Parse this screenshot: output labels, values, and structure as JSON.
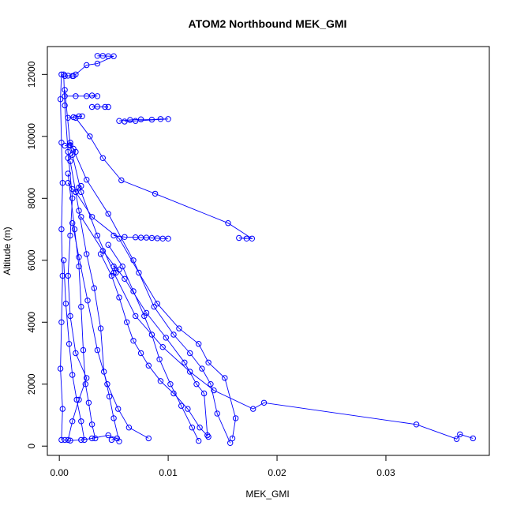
{
  "chart_data": {
    "type": "scatter",
    "title": "ATOM2 Northbound MEK_GMI",
    "xlabel": "MEK_GMI",
    "ylabel": "Altitude (m)",
    "xlim": [
      -0.0011,
      0.0395
    ],
    "ylim": [
      -300,
      12900
    ],
    "x_ticks": [
      "0.00",
      "0.01",
      "0.02",
      "0.03"
    ],
    "x_tick_values": [
      0,
      0.01,
      0.02,
      0.03
    ],
    "y_ticks": [
      "0",
      "2000",
      "4000",
      "6000",
      "8000",
      "10000",
      "12000"
    ],
    "y_tick_values": [
      0,
      2000,
      4000,
      6000,
      8000,
      10000,
      12000
    ],
    "grid": false,
    "series": [
      {
        "color": "#0000ff",
        "marker": "open-circle",
        "line": true,
        "profiles": [
          [
            [
              0.0002,
              200
            ],
            [
              0.0003,
              1200
            ],
            [
              0.0001,
              2500
            ],
            [
              0.0002,
              4000
            ],
            [
              0.0003,
              5500
            ],
            [
              0.0002,
              7000
            ],
            [
              0.0003,
              8500
            ],
            [
              0.0002,
              9800
            ],
            [
              0.0001,
              11200
            ],
            [
              0.0002,
              12000
            ]
          ],
          [
            [
              0.0008,
              200
            ],
            [
              0.0012,
              800
            ],
            [
              0.0018,
              1500
            ],
            [
              0.0025,
              2200
            ],
            [
              0.0015,
              3000
            ],
            [
              0.001,
              4200
            ],
            [
              0.0008,
              5500
            ],
            [
              0.001,
              6800
            ],
            [
              0.0012,
              8000
            ],
            [
              0.0008,
              9500
            ],
            [
              0.0005,
              11000
            ],
            [
              0.0004,
              12000
            ]
          ],
          [
            [
              0.038,
              250
            ],
            [
              0.0368,
              380
            ],
            [
              0.0365,
              230
            ],
            [
              0.0328,
              700
            ],
            [
              0.0188,
              1400
            ],
            [
              0.0178,
              1200
            ],
            [
              0.0142,
              1800
            ],
            [
              0.012,
              2400
            ],
            [
              0.0095,
              3200
            ],
            [
              0.007,
              4200
            ],
            [
              0.005,
              5600
            ],
            [
              0.0035,
              6800
            ],
            [
              0.002,
              8200
            ],
            [
              0.001,
              9700
            ],
            [
              0.0005,
              11500
            ]
          ],
          [
            [
              0.0172,
              6700
            ],
            [
              0.0165,
              6720
            ],
            [
              0.0177,
              6700
            ],
            [
              0.0155,
              7200
            ],
            [
              0.0088,
              8150
            ],
            [
              0.0057,
              8580
            ],
            [
              0.004,
              9300
            ],
            [
              0.0028,
              10000
            ],
            [
              0.0015,
              10600
            ]
          ],
          [
            [
              0.0159,
              250
            ],
            [
              0.0162,
              900
            ],
            [
              0.0152,
              2200
            ],
            [
              0.0137,
              2700
            ],
            [
              0.0128,
              3300
            ],
            [
              0.011,
              3800
            ],
            [
              0.009,
              4600
            ],
            [
              0.0073,
              5600
            ],
            [
              0.0055,
              6700
            ],
            [
              0.003,
              7400
            ],
            [
              0.0015,
              8200
            ]
          ],
          [
            [
              0.0157,
              100
            ],
            [
              0.0145,
              1050
            ],
            [
              0.0139,
              2000
            ],
            [
              0.0131,
              2500
            ],
            [
              0.012,
              3000
            ],
            [
              0.0105,
              3600
            ],
            [
              0.0087,
              4500
            ],
            [
              0.0068,
              6000
            ],
            [
              0.0045,
              7500
            ],
            [
              0.0025,
              8600
            ],
            [
              0.001,
              9800
            ]
          ],
          [
            [
              0.0136,
              350
            ],
            [
              0.0133,
              1700
            ],
            [
              0.0126,
              2000
            ],
            [
              0.0115,
              2700
            ],
            [
              0.0098,
              3500
            ],
            [
              0.008,
              4300
            ],
            [
              0.006,
              5400
            ],
            [
              0.004,
              6300
            ],
            [
              0.002,
              7400
            ]
          ],
          [
            [
              0.0082,
              250
            ],
            [
              0.0064,
              600
            ],
            [
              0.0054,
              1200
            ],
            [
              0.0044,
              2000
            ],
            [
              0.0035,
              3100
            ],
            [
              0.0026,
              4700
            ],
            [
              0.0018,
              6100
            ],
            [
              0.0012,
              7200
            ]
          ],
          [
            [
              0.0055,
              150
            ],
            [
              0.005,
              900
            ],
            [
              0.0046,
              1600
            ],
            [
              0.0041,
              2400
            ],
            [
              0.0038,
              3800
            ],
            [
              0.0032,
              5100
            ],
            [
              0.0025,
              6200
            ],
            [
              0.0018,
              7600
            ],
            [
              0.001,
              9200
            ]
          ],
          [
            [
              0.0033,
              250
            ],
            [
              0.003,
              700
            ],
            [
              0.0027,
              1400
            ],
            [
              0.0024,
              2000
            ],
            [
              0.0022,
              3100
            ],
            [
              0.002,
              4500
            ],
            [
              0.0018,
              5800
            ],
            [
              0.0014,
              7000
            ],
            [
              0.0008,
              8800
            ]
          ],
          [
            [
              0.0137,
              300
            ],
            [
              0.0129,
              600
            ],
            [
              0.0118,
              1200
            ],
            [
              0.0105,
              1700
            ],
            [
              0.0093,
              2100
            ],
            [
              0.0082,
              2600
            ],
            [
              0.0075,
              3000
            ],
            [
              0.0068,
              3400
            ],
            [
              0.0062,
              4000
            ],
            [
              0.0055,
              4800
            ],
            [
              0.0048,
              5500
            ],
            [
              0.0038,
              6200
            ]
          ],
          [
            [
              0.0128,
              170
            ],
            [
              0.0122,
              600
            ],
            [
              0.0112,
              1300
            ],
            [
              0.0102,
              2000
            ],
            [
              0.0092,
              2800
            ],
            [
              0.0085,
              3600
            ],
            [
              0.0078,
              4200
            ],
            [
              0.0068,
              5000
            ],
            [
              0.0058,
              5800
            ],
            [
              0.0045,
              6500
            ]
          ],
          [
            [
              0.0023,
              200
            ],
            [
              0.002,
              800
            ],
            [
              0.0016,
              1500
            ],
            [
              0.0012,
              2300
            ],
            [
              0.0009,
              3300
            ],
            [
              0.0006,
              4600
            ],
            [
              0.0004,
              6000
            ]
          ],
          [
            [
              0.005,
              6800
            ],
            [
              0.006,
              6750
            ],
            [
              0.007,
              6740
            ],
            [
              0.0075,
              6730
            ],
            [
              0.008,
              6730
            ],
            [
              0.0085,
              6720
            ],
            [
              0.009,
              6710
            ],
            [
              0.0095,
              6700
            ],
            [
              0.01,
              6700
            ]
          ],
          [
            [
              0.0055,
              10500
            ],
            [
              0.0065,
              10530
            ],
            [
              0.0075,
              10550
            ],
            [
              0.0085,
              10540
            ],
            [
              0.0093,
              10560
            ],
            [
              0.01,
              10560
            ],
            [
              0.007,
              10500
            ],
            [
              0.006,
              10480
            ]
          ],
          [
            [
              0.0005,
              11950
            ],
            [
              0.0008,
              11960
            ],
            [
              0.0012,
              11950
            ],
            [
              0.0013,
              11950
            ]
          ],
          [
            [
              0.0005,
              11300
            ],
            [
              0.0015,
              11300
            ],
            [
              0.0025,
              11300
            ],
            [
              0.0035,
              11300
            ],
            [
              0.003,
              11320
            ]
          ],
          [
            [
              0.003,
              10950
            ],
            [
              0.0035,
              10960
            ],
            [
              0.0042,
              10950
            ],
            [
              0.0045,
              10950
            ]
          ],
          [
            [
              0.0008,
              10600
            ],
            [
              0.0013,
              10620
            ],
            [
              0.0018,
              10650
            ],
            [
              0.0021,
              10650
            ]
          ],
          [
            [
              0.0035,
              12600
            ],
            [
              0.004,
              12600
            ],
            [
              0.0045,
              12590
            ],
            [
              0.005,
              12590
            ],
            [
              0.0035,
              12350
            ],
            [
              0.0025,
              12300
            ],
            [
              0.0015,
              12000
            ]
          ],
          [
            [
              0.0005,
              9700
            ],
            [
              0.001,
              9720
            ],
            [
              0.0013,
              9600
            ],
            [
              0.0015,
              9500
            ],
            [
              0.0012,
              9400
            ],
            [
              0.0008,
              9300
            ]
          ],
          [
            [
              0.0008,
              8500
            ],
            [
              0.0012,
              8300
            ],
            [
              0.0015,
              8200
            ],
            [
              0.0018,
              8350
            ],
            [
              0.002,
              8400
            ]
          ],
          [
            [
              0.0055,
              5700
            ],
            [
              0.005,
              5800
            ],
            [
              0.0052,
              5600
            ]
          ],
          [
            [
              0.0048,
              200
            ],
            [
              0.0053,
              250
            ],
            [
              0.0045,
              350
            ],
            [
              0.003,
              250
            ],
            [
              0.002,
              200
            ],
            [
              0.001,
              180
            ],
            [
              0.0005,
              200
            ]
          ]
        ]
      }
    ]
  }
}
